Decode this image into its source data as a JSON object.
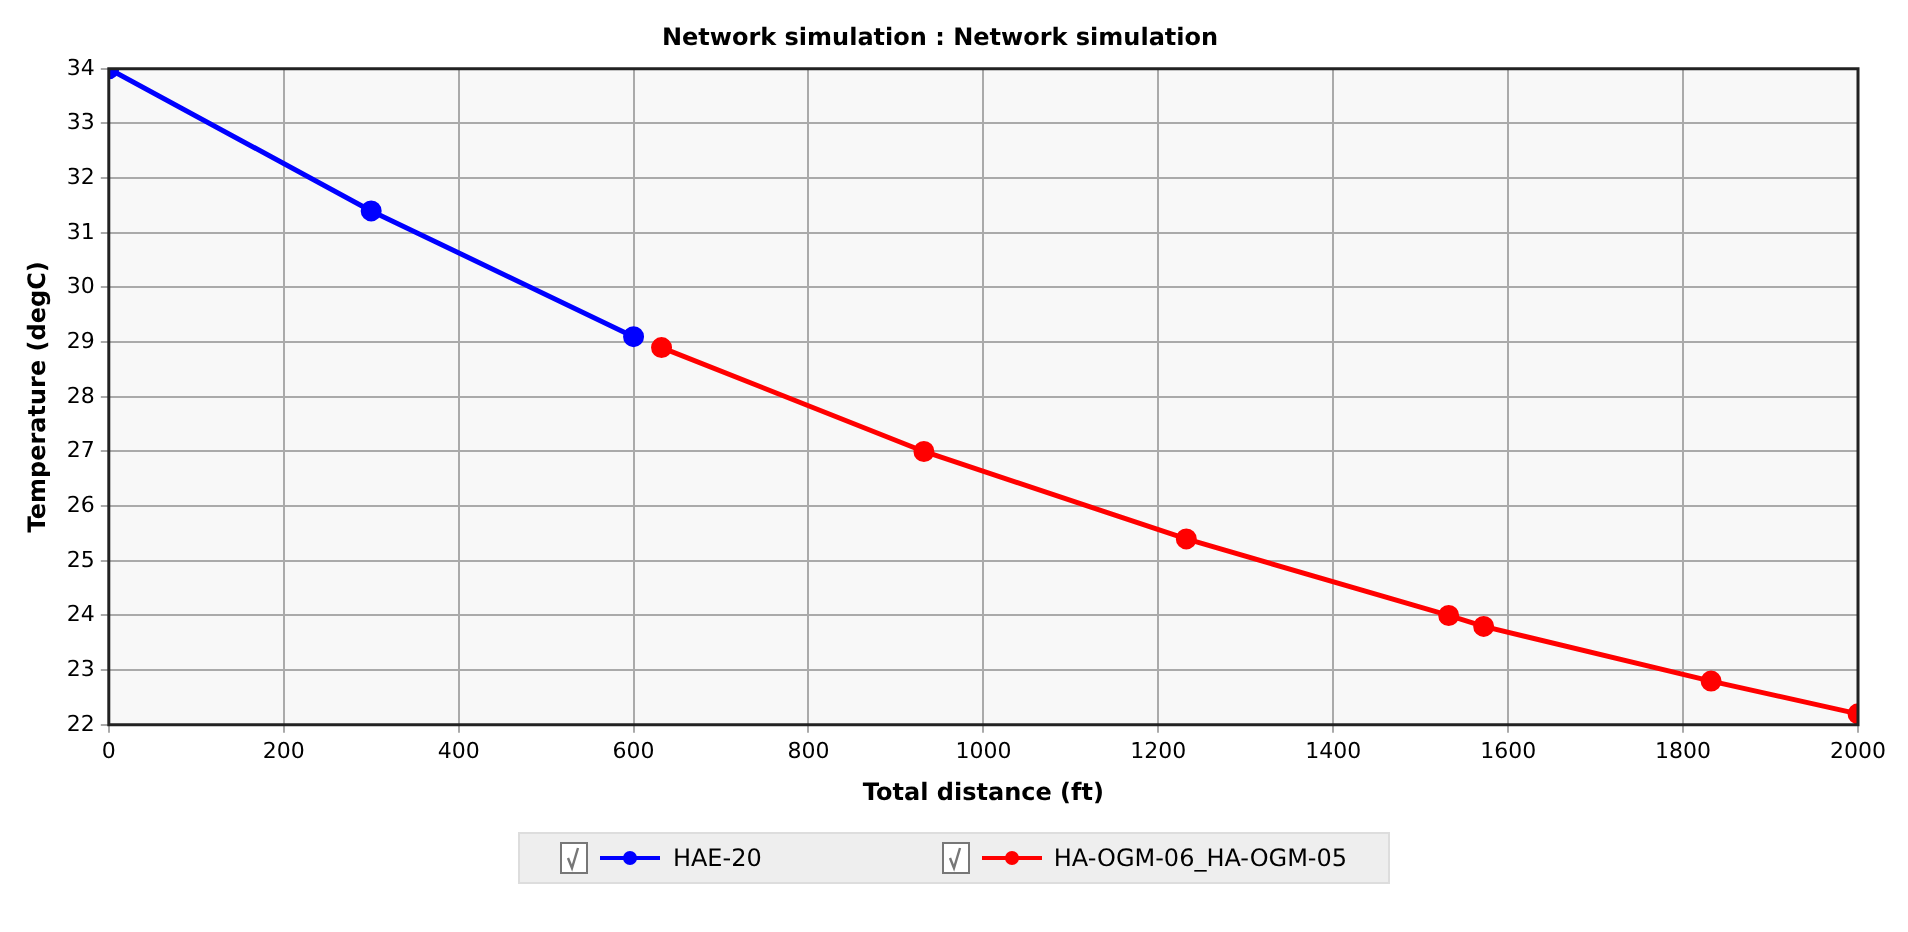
{
  "chart_data": {
    "type": "line",
    "title": "Network simulation : Network simulation",
    "xlabel": "Total distance (ft)",
    "ylabel": "Temperature (degC)",
    "xlim": [
      0,
      2000
    ],
    "xticks": [
      0,
      200,
      400,
      600,
      800,
      1000,
      1200,
      1400,
      1600,
      1800,
      2000
    ],
    "ylim": [
      22,
      34
    ],
    "yticks": [
      22,
      23,
      24,
      25,
      26,
      27,
      28,
      29,
      30,
      31,
      32,
      33,
      34
    ],
    "grid": true,
    "legend": "bottom",
    "marker": "circle",
    "line_style": "solid",
    "series": [
      {
        "name": "HAE-20",
        "color": "#0000ff",
        "x": [
          0,
          300,
          600
        ],
        "values": [
          34,
          31.4,
          29.1
        ]
      },
      {
        "name": "HA-OGM-06_HA-OGM-05",
        "color": "#ff0000",
        "x": [
          632,
          932,
          1232,
          1532,
          1572,
          1832,
          2000
        ],
        "values": [
          28.9,
          27.0,
          25.4,
          24.0,
          23.8,
          22.8,
          22.2
        ]
      }
    ]
  }
}
